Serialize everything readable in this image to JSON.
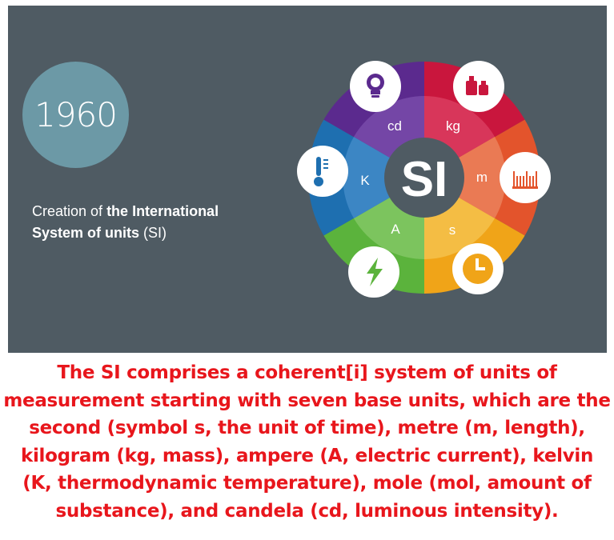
{
  "slide": {
    "year": "1960",
    "headline": {
      "prefix": "Creation of ",
      "bold_line1": "the International",
      "bold_line2": "System of units",
      "suffix": " (SI)"
    },
    "wheel": {
      "center_label": "SI",
      "units": [
        {
          "symbol": "kg",
          "icon": "weight-icon",
          "color": "#c9163d"
        },
        {
          "symbol": "m",
          "icon": "ruler-icon",
          "color": "#e3542c"
        },
        {
          "symbol": "s",
          "icon": "clock-icon",
          "color": "#f0a418"
        },
        {
          "symbol": "A",
          "icon": "lightning-icon",
          "color": "#5bb33c"
        },
        {
          "symbol": "K",
          "icon": "thermometer-icon",
          "color": "#1e6fb0"
        },
        {
          "symbol": "cd",
          "icon": "lightbulb-icon",
          "color": "#5b2a8e"
        }
      ]
    },
    "colors": {
      "background": "#4f5b63",
      "year_circle": "#6c99a6",
      "center": "#4f5b63",
      "caption_text": "#e8161c"
    }
  },
  "caption": {
    "lines": [
      "The SI comprises a coherent[i] system of units of",
      "measurement starting with seven base units, which are the",
      "second (symbol s, the unit of time), metre (m, length),",
      "kilogram (kg, mass), ampere (A, electric current), kelvin",
      "(K, thermodynamic temperature), mole (mol, amount of",
      "substance), and candela (cd, luminous intensity)."
    ]
  }
}
